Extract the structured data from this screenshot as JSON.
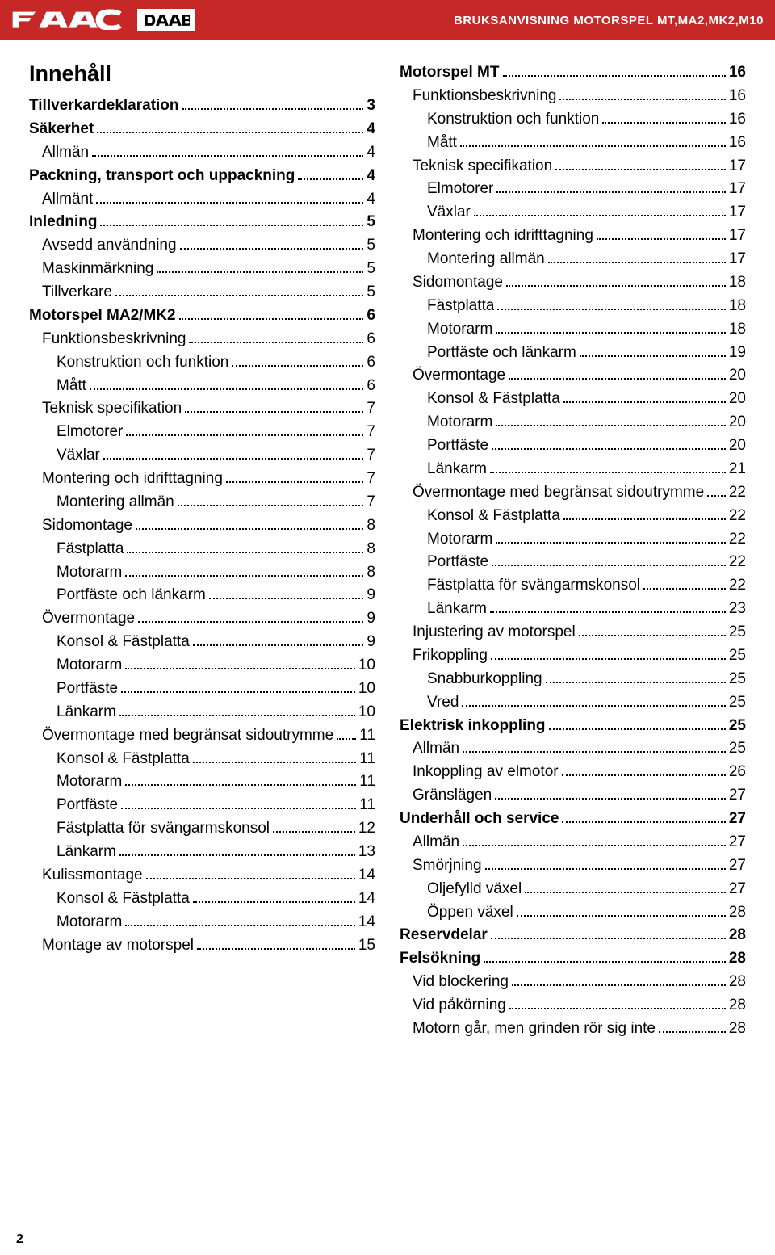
{
  "header": {
    "brand1": "FAAC",
    "brand2": "DAAB",
    "title": "BRUKSANVISNING MOTORSPEL MT,MA2,MK2,M10"
  },
  "toc_title": "Innehåll",
  "page_number": "2",
  "colors": {
    "header_bg": "#c62828",
    "header_text": "#ffffff",
    "body_text": "#000000",
    "page_bg": "#ffffff"
  },
  "typography": {
    "toc_title_size_pt": 20,
    "toc_item_size_pt": 14,
    "header_title_size_pt": 11,
    "font_family": "Arial"
  },
  "columns": [
    [
      {
        "label": "Tillverkardeklaration",
        "page": "3",
        "level": 0
      },
      {
        "label": "Säkerhet",
        "page": "4",
        "level": 0
      },
      {
        "label": "Allmän",
        "page": "4",
        "level": 1
      },
      {
        "label": "Packning, transport och uppackning",
        "page": "4",
        "level": 0
      },
      {
        "label": "Allmänt",
        "page": "4",
        "level": 1
      },
      {
        "label": "Inledning",
        "page": "5",
        "level": 0
      },
      {
        "label": "Avsedd användning",
        "page": "5",
        "level": 1
      },
      {
        "label": "Maskinmärkning",
        "page": "5",
        "level": 1
      },
      {
        "label": "Tillverkare",
        "page": "5",
        "level": 1
      },
      {
        "label": "Motorspel MA2/MK2",
        "page": "6",
        "level": 0
      },
      {
        "label": "Funktionsbeskrivning",
        "page": "6",
        "level": 1
      },
      {
        "label": "Konstruktion och funktion",
        "page": "6",
        "level": 2
      },
      {
        "label": "Mått",
        "page": "6",
        "level": 2
      },
      {
        "label": "Teknisk specifikation",
        "page": "7",
        "level": 1
      },
      {
        "label": "Elmotorer",
        "page": "7",
        "level": 2
      },
      {
        "label": "Växlar",
        "page": "7",
        "level": 2
      },
      {
        "label": "Montering och idrifttagning",
        "page": "7",
        "level": 1
      },
      {
        "label": "Montering allmän",
        "page": "7",
        "level": 2
      },
      {
        "label": "Sidomontage",
        "page": "8",
        "level": 1
      },
      {
        "label": "Fästplatta",
        "page": "8",
        "level": 2
      },
      {
        "label": "Motorarm",
        "page": "8",
        "level": 2
      },
      {
        "label": "Portfäste och länkarm",
        "page": "9",
        "level": 2
      },
      {
        "label": "Övermontage",
        "page": "9",
        "level": 1
      },
      {
        "label": "Konsol & Fästplatta",
        "page": "9",
        "level": 2
      },
      {
        "label": "Motorarm",
        "page": "10",
        "level": 2
      },
      {
        "label": "Portfäste",
        "page": "10",
        "level": 2
      },
      {
        "label": "Länkarm",
        "page": "10",
        "level": 2
      },
      {
        "label": "Övermontage med begränsat sidoutrymme",
        "page": "11",
        "level": 1
      },
      {
        "label": "Konsol & Fästplatta",
        "page": "11",
        "level": 2
      },
      {
        "label": "Motorarm",
        "page": "11",
        "level": 2
      },
      {
        "label": "Portfäste",
        "page": "11",
        "level": 2
      },
      {
        "label": "Fästplatta för svängarmskonsol",
        "page": "12",
        "level": 2
      },
      {
        "label": "Länkarm",
        "page": "13",
        "level": 2
      },
      {
        "label": "Kulissmontage",
        "page": "14",
        "level": 1
      },
      {
        "label": "Konsol & Fästplatta",
        "page": "14",
        "level": 2
      },
      {
        "label": "Motorarm",
        "page": "14",
        "level": 2
      },
      {
        "label": "Montage av motorspel",
        "page": "15",
        "level": 1
      }
    ],
    [
      {
        "label": "Motorspel MT",
        "page": "16",
        "level": 0
      },
      {
        "label": "Funktionsbeskrivning",
        "page": "16",
        "level": 1
      },
      {
        "label": "Konstruktion och funktion",
        "page": "16",
        "level": 2
      },
      {
        "label": "Mått",
        "page": "16",
        "level": 2
      },
      {
        "label": "Teknisk specifikation",
        "page": "17",
        "level": 1
      },
      {
        "label": "Elmotorer",
        "page": "17",
        "level": 2
      },
      {
        "label": "Växlar",
        "page": "17",
        "level": 2
      },
      {
        "label": "Montering och idrifttagning",
        "page": "17",
        "level": 1
      },
      {
        "label": "Montering allmän",
        "page": "17",
        "level": 2
      },
      {
        "label": "Sidomontage",
        "page": "18",
        "level": 1
      },
      {
        "label": "Fästplatta",
        "page": "18",
        "level": 2
      },
      {
        "label": "Motorarm",
        "page": "18",
        "level": 2
      },
      {
        "label": "Portfäste och länkarm",
        "page": "19",
        "level": 2
      },
      {
        "label": "Övermontage",
        "page": "20",
        "level": 1
      },
      {
        "label": "Konsol & Fästplatta",
        "page": "20",
        "level": 2
      },
      {
        "label": "Motorarm",
        "page": "20",
        "level": 2
      },
      {
        "label": "Portfäste",
        "page": "20",
        "level": 2
      },
      {
        "label": "Länkarm",
        "page": "21",
        "level": 2
      },
      {
        "label": "Övermontage med begränsat sidoutrymme",
        "page": "22",
        "level": 1
      },
      {
        "label": "Konsol & Fästplatta",
        "page": "22",
        "level": 2
      },
      {
        "label": "Motorarm",
        "page": "22",
        "level": 2
      },
      {
        "label": "Portfäste",
        "page": "22",
        "level": 2
      },
      {
        "label": "Fästplatta för svängarmskonsol",
        "page": "22",
        "level": 2
      },
      {
        "label": "Länkarm",
        "page": "23",
        "level": 2
      },
      {
        "label": "Injustering av motorspel",
        "page": "25",
        "level": 1
      },
      {
        "label": "Frikoppling",
        "page": "25",
        "level": 1
      },
      {
        "label": "Snabburkoppling",
        "page": "25",
        "level": 2
      },
      {
        "label": "Vred",
        "page": "25",
        "level": 2
      },
      {
        "label": "Elektrisk inkoppling",
        "page": "25",
        "level": 0
      },
      {
        "label": "Allmän",
        "page": "25",
        "level": 1
      },
      {
        "label": "Inkoppling av elmotor",
        "page": "26",
        "level": 1
      },
      {
        "label": "Gränslägen",
        "page": "27",
        "level": 1
      },
      {
        "label": "Underhåll och service",
        "page": "27",
        "level": 0
      },
      {
        "label": "Allmän",
        "page": "27",
        "level": 1
      },
      {
        "label": "Smörjning",
        "page": "27",
        "level": 1
      },
      {
        "label": "Oljefylld växel",
        "page": "27",
        "level": 2
      },
      {
        "label": "Öppen växel",
        "page": "28",
        "level": 2
      },
      {
        "label": "Reservdelar",
        "page": "28",
        "level": 0
      },
      {
        "label": "Felsökning",
        "page": "28",
        "level": 0
      },
      {
        "label": "Vid blockering",
        "page": "28",
        "level": 1
      },
      {
        "label": "Vid påkörning",
        "page": "28",
        "level": 1
      },
      {
        "label": "Motorn går, men grinden rör sig inte",
        "page": "28",
        "level": 1
      }
    ]
  ]
}
